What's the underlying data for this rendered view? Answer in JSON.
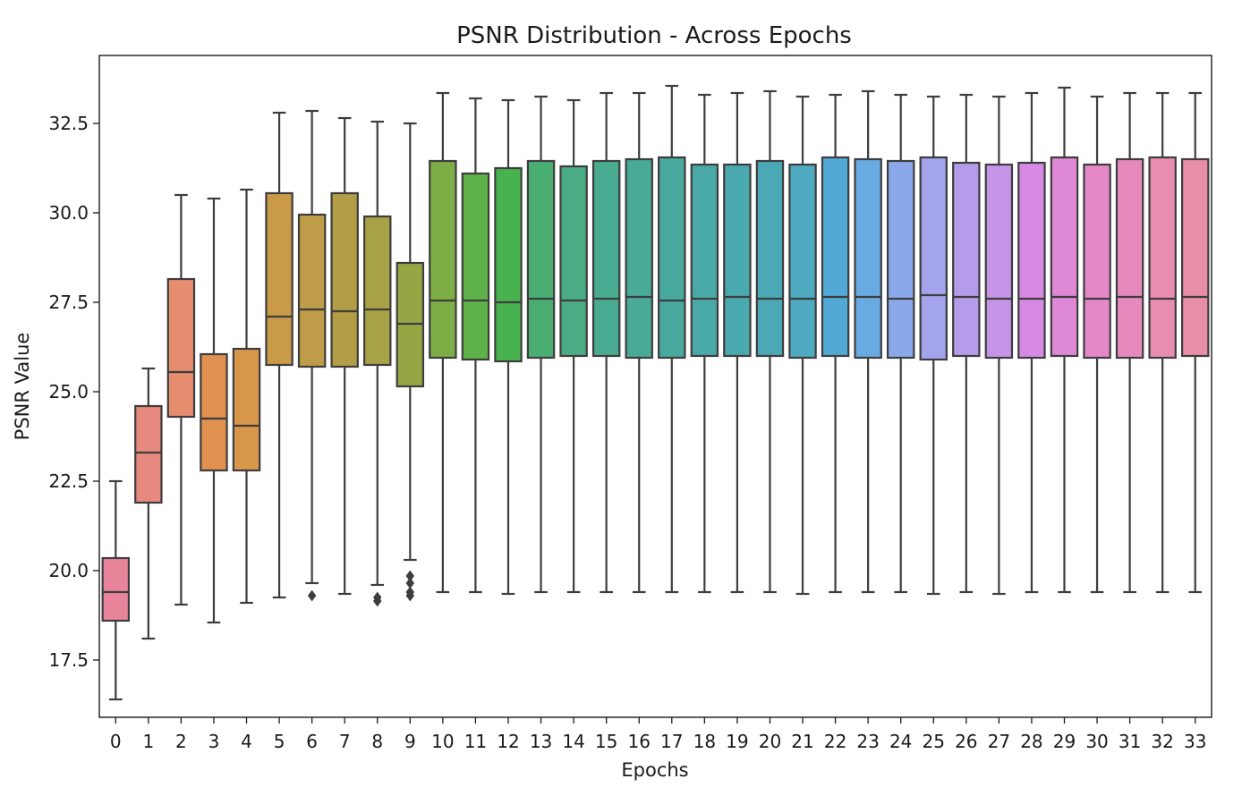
{
  "chart_data": {
    "type": "box",
    "title": "PSNR Distribution - Across Epochs",
    "xlabel": "Epochs",
    "ylabel": "PSNR Value",
    "ylim": [
      15.9,
      34.4
    ],
    "yticks": [
      17.5,
      20.0,
      22.5,
      25.0,
      27.5,
      30.0,
      32.5
    ],
    "ytick_labels": [
      "17.5",
      "20.0",
      "22.5",
      "25.0",
      "27.5",
      "30.0",
      "32.5"
    ],
    "grid": false,
    "legend": "none",
    "categories": [
      "0",
      "1",
      "2",
      "3",
      "4",
      "5",
      "6",
      "7",
      "8",
      "9",
      "10",
      "11",
      "12",
      "13",
      "14",
      "15",
      "16",
      "17",
      "18",
      "19",
      "20",
      "21",
      "22",
      "23",
      "24",
      "25",
      "26",
      "27",
      "28",
      "29",
      "30",
      "31",
      "32",
      "33"
    ],
    "boxes": [
      {
        "x": "0",
        "whislo": 16.4,
        "q1": 18.6,
        "med": 19.4,
        "q3": 20.35,
        "whishi": 22.5,
        "fliers": [],
        "color": "#e8859a"
      },
      {
        "x": "1",
        "whislo": 18.1,
        "q1": 21.9,
        "med": 23.3,
        "q3": 24.6,
        "whishi": 25.65,
        "fliers": [],
        "color": "#e8897f"
      },
      {
        "x": "2",
        "whislo": 19.05,
        "q1": 24.3,
        "med": 25.55,
        "q3": 28.15,
        "whishi": 30.5,
        "fliers": [],
        "color": "#e68d70"
      },
      {
        "x": "3",
        "whislo": 18.55,
        "q1": 22.8,
        "med": 24.25,
        "q3": 26.05,
        "whishi": 30.4,
        "fliers": [],
        "color": "#e0914f"
      },
      {
        "x": "4",
        "whislo": 19.1,
        "q1": 22.8,
        "med": 24.05,
        "q3": 26.2,
        "whishi": 30.65,
        "fliers": [],
        "color": "#d8964a"
      },
      {
        "x": "5",
        "whislo": 19.25,
        "q1": 25.75,
        "med": 27.1,
        "q3": 30.55,
        "whishi": 32.8,
        "fliers": [],
        "color": "#c99b48"
      },
      {
        "x": "6",
        "whislo": 19.65,
        "q1": 25.7,
        "med": 27.3,
        "q3": 29.95,
        "whishi": 32.85,
        "fliers": [
          19.3
        ],
        "color": "#bf9c47"
      },
      {
        "x": "7",
        "whislo": 19.35,
        "q1": 25.7,
        "med": 27.25,
        "q3": 30.55,
        "whishi": 32.65,
        "fliers": [],
        "color": "#b39d46"
      },
      {
        "x": "8",
        "whislo": 19.6,
        "q1": 25.75,
        "med": 27.3,
        "q3": 29.9,
        "whishi": 32.55,
        "fliers": [
          19.15,
          19.25
        ],
        "color": "#a8a246"
      },
      {
        "x": "9",
        "whislo": 20.3,
        "q1": 25.15,
        "med": 26.9,
        "q3": 28.6,
        "whishi": 32.5,
        "fliers": [
          19.3,
          19.4,
          19.65,
          19.85
        ],
        "color": "#97a645"
      },
      {
        "x": "10",
        "whislo": 19.4,
        "q1": 25.95,
        "med": 27.55,
        "q3": 31.45,
        "whishi": 33.35,
        "fliers": [],
        "color": "#7dad45"
      },
      {
        "x": "11",
        "whislo": 19.4,
        "q1": 25.9,
        "med": 27.55,
        "q3": 31.1,
        "whishi": 33.2,
        "fliers": [],
        "color": "#5fb24a"
      },
      {
        "x": "12",
        "whislo": 19.35,
        "q1": 25.85,
        "med": 27.5,
        "q3": 31.25,
        "whishi": 33.15,
        "fliers": [],
        "color": "#48b24f"
      },
      {
        "x": "13",
        "whislo": 19.4,
        "q1": 25.95,
        "med": 27.6,
        "q3": 31.45,
        "whishi": 33.25,
        "fliers": [],
        "color": "#4aae72"
      },
      {
        "x": "14",
        "whislo": 19.4,
        "q1": 26.0,
        "med": 27.55,
        "q3": 31.3,
        "whishi": 33.15,
        "fliers": [],
        "color": "#4aac84"
      },
      {
        "x": "15",
        "whislo": 19.4,
        "q1": 26.0,
        "med": 27.6,
        "q3": 31.45,
        "whishi": 33.35,
        "fliers": [],
        "color": "#49ab8f"
      },
      {
        "x": "16",
        "whislo": 19.4,
        "q1": 25.95,
        "med": 27.65,
        "q3": 31.5,
        "whishi": 33.35,
        "fliers": [],
        "color": "#48aa97"
      },
      {
        "x": "17",
        "whislo": 19.4,
        "q1": 25.95,
        "med": 27.55,
        "q3": 31.55,
        "whishi": 33.55,
        "fliers": [],
        "color": "#48aa9f"
      },
      {
        "x": "18",
        "whislo": 19.4,
        "q1": 26.0,
        "med": 27.6,
        "q3": 31.35,
        "whishi": 33.3,
        "fliers": [],
        "color": "#49a9a7"
      },
      {
        "x": "19",
        "whislo": 19.4,
        "q1": 26.0,
        "med": 27.65,
        "q3": 31.35,
        "whishi": 33.35,
        "fliers": [],
        "color": "#4aa9ae"
      },
      {
        "x": "20",
        "whislo": 19.4,
        "q1": 26.0,
        "med": 27.6,
        "q3": 31.45,
        "whishi": 33.4,
        "fliers": [],
        "color": "#4ba9b6"
      },
      {
        "x": "21",
        "whislo": 19.35,
        "q1": 25.95,
        "med": 27.6,
        "q3": 31.35,
        "whishi": 33.25,
        "fliers": [],
        "color": "#4daabf"
      },
      {
        "x": "22",
        "whislo": 19.4,
        "q1": 26.0,
        "med": 27.65,
        "q3": 31.55,
        "whishi": 33.3,
        "fliers": [],
        "color": "#52a9d6"
      },
      {
        "x": "23",
        "whislo": 19.4,
        "q1": 25.95,
        "med": 27.65,
        "q3": 31.5,
        "whishi": 33.4,
        "fliers": [],
        "color": "#6aaae3"
      },
      {
        "x": "24",
        "whislo": 19.4,
        "q1": 25.95,
        "med": 27.6,
        "q3": 31.45,
        "whishi": 33.3,
        "fliers": [],
        "color": "#8aa8ea"
      },
      {
        "x": "25",
        "whislo": 19.35,
        "q1": 25.9,
        "med": 27.7,
        "q3": 31.55,
        "whishi": 33.25,
        "fliers": [],
        "color": "#a4a4ec"
      },
      {
        "x": "26",
        "whislo": 19.4,
        "q1": 26.0,
        "med": 27.65,
        "q3": 31.4,
        "whishi": 33.3,
        "fliers": [],
        "color": "#b59cea"
      },
      {
        "x": "27",
        "whislo": 19.35,
        "q1": 25.95,
        "med": 27.6,
        "q3": 31.35,
        "whishi": 33.25,
        "fliers": [],
        "color": "#c694e6"
      },
      {
        "x": "28",
        "whislo": 19.4,
        "q1": 25.95,
        "med": 27.6,
        "q3": 31.4,
        "whishi": 33.35,
        "fliers": [],
        "color": "#d68ae3"
      },
      {
        "x": "29",
        "whislo": 19.4,
        "q1": 26.0,
        "med": 27.65,
        "q3": 31.55,
        "whishi": 33.5,
        "fliers": [],
        "color": "#df88d6"
      },
      {
        "x": "30",
        "whislo": 19.4,
        "q1": 25.95,
        "med": 27.6,
        "q3": 31.35,
        "whishi": 33.25,
        "fliers": [],
        "color": "#e488c8"
      },
      {
        "x": "31",
        "whislo": 19.4,
        "q1": 25.95,
        "med": 27.65,
        "q3": 31.5,
        "whishi": 33.35,
        "fliers": [],
        "color": "#e68abd"
      },
      {
        "x": "32",
        "whislo": 19.4,
        "q1": 25.95,
        "med": 27.6,
        "q3": 31.55,
        "whishi": 33.35,
        "fliers": [],
        "color": "#e88cb2"
      },
      {
        "x": "33",
        "whislo": 19.4,
        "q1": 26.0,
        "med": 27.65,
        "q3": 31.5,
        "whishi": 33.35,
        "fliers": [],
        "color": "#e98ea7"
      }
    ],
    "line_color": "#3d3d3d"
  }
}
